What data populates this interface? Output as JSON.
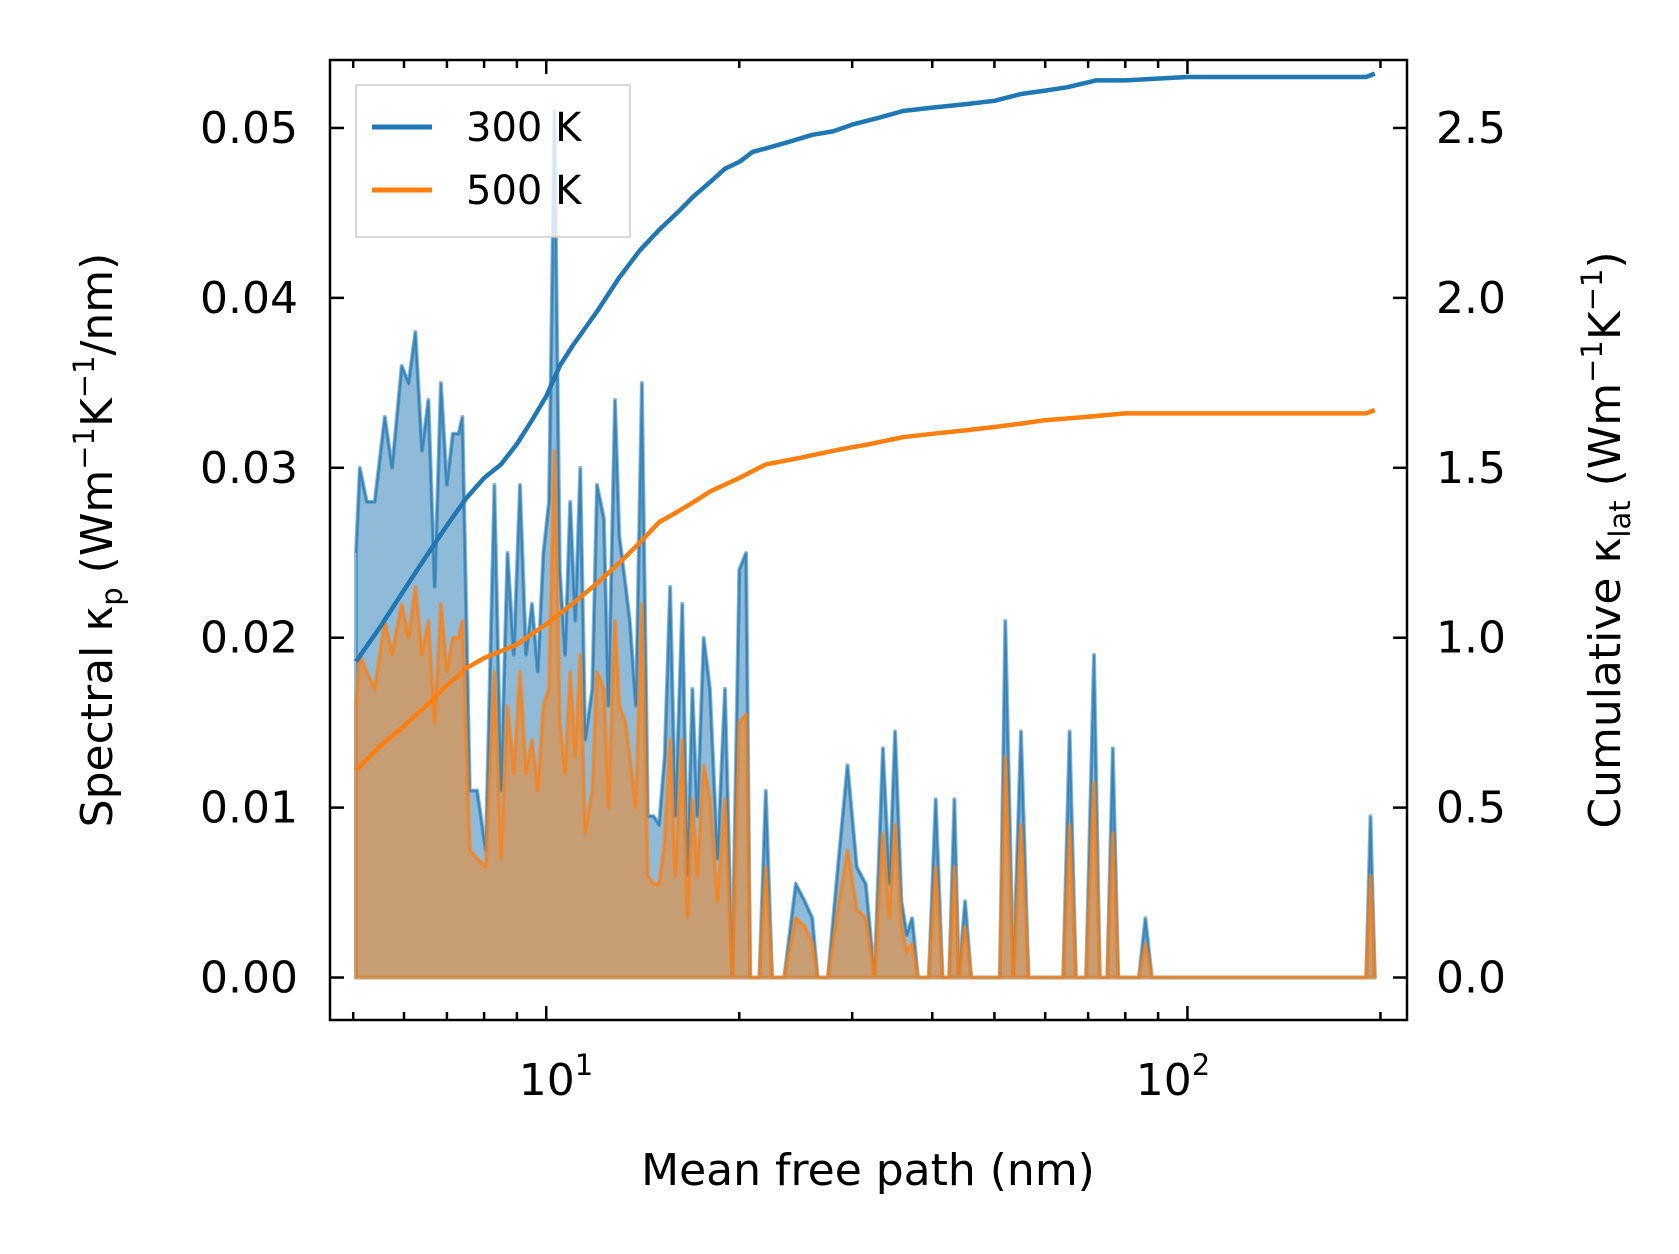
{
  "chart_data": {
    "type": "area",
    "xscale": "log",
    "xlim": [
      4.6,
      220
    ],
    "ylim": [
      -0.0025,
      0.054
    ],
    "y2lim": [
      -0.125,
      2.7
    ],
    "xlabel": "Mean free path (nm)",
    "ylabel": {
      "prefix": "Spectral κ",
      "sub": "p",
      "mid": " (Wm",
      "sup1": "−1",
      "k": "K",
      "sup2": "−1",
      "suffix": "/nm)"
    },
    "y2label": {
      "prefix": "Cumulative κ",
      "sub": "lat",
      "mid": " (Wm",
      "sup1": "−1",
      "k": "K",
      "sup2": "−1",
      "suffix": ")"
    },
    "xticks": [
      {
        "value": 10,
        "base": "10",
        "exp": "1"
      },
      {
        "value": 100,
        "base": "10",
        "exp": "2"
      }
    ],
    "yticks": [
      {
        "value": 0.0,
        "label": "0.00"
      },
      {
        "value": 0.01,
        "label": "0.01"
      },
      {
        "value": 0.02,
        "label": "0.02"
      },
      {
        "value": 0.03,
        "label": "0.03"
      },
      {
        "value": 0.04,
        "label": "0.04"
      },
      {
        "value": 0.05,
        "label": "0.05"
      }
    ],
    "y2ticks": [
      {
        "value": 0.0,
        "label": "0.0"
      },
      {
        "value": 0.5,
        "label": "0.5"
      },
      {
        "value": 1.0,
        "label": "1.0"
      },
      {
        "value": 1.5,
        "label": "1.5"
      },
      {
        "value": 2.0,
        "label": "2.0"
      },
      {
        "value": 2.5,
        "label": "2.5"
      }
    ],
    "legend": {
      "position": "upper-left",
      "entries": [
        "300 K",
        "500 K"
      ]
    },
    "colors": {
      "300 K": "#1f77b4",
      "500 K": "#ff7f0e"
    },
    "spectral": {
      "300 K": [
        [
          5.05,
          0.025
        ],
        [
          5.12,
          0.03
        ],
        [
          5.25,
          0.028
        ],
        [
          5.4,
          0.028
        ],
        [
          5.6,
          0.033
        ],
        [
          5.75,
          0.03
        ],
        [
          5.95,
          0.036
        ],
        [
          6.1,
          0.035
        ],
        [
          6.25,
          0.038
        ],
        [
          6.4,
          0.031
        ],
        [
          6.55,
          0.034
        ],
        [
          6.7,
          0.023
        ],
        [
          6.85,
          0.035
        ],
        [
          7.0,
          0.029
        ],
        [
          7.15,
          0.032
        ],
        [
          7.3,
          0.032
        ],
        [
          7.4,
          0.033
        ],
        [
          7.6,
          0.011
        ],
        [
          7.8,
          0.011
        ],
        [
          8.05,
          0.0075
        ],
        [
          8.3,
          0.029
        ],
        [
          8.5,
          0.011
        ],
        [
          8.7,
          0.025
        ],
        [
          8.9,
          0.019
        ],
        [
          9.1,
          0.029
        ],
        [
          9.3,
          0.019
        ],
        [
          9.5,
          0.022
        ],
        [
          9.7,
          0.018
        ],
        [
          9.9,
          0.025
        ],
        [
          10.1,
          0.028
        ],
        [
          10.3,
          0.051
        ],
        [
          10.5,
          0.024
        ],
        [
          10.7,
          0.019
        ],
        [
          10.9,
          0.028
        ],
        [
          11.1,
          0.021
        ],
        [
          11.3,
          0.03
        ],
        [
          11.5,
          0.014
        ],
        [
          11.8,
          0.017
        ],
        [
          12.0,
          0.029
        ],
        [
          12.3,
          0.027
        ],
        [
          12.5,
          0.016
        ],
        [
          12.8,
          0.034
        ],
        [
          13.0,
          0.026
        ],
        [
          13.3,
          0.023
        ],
        [
          13.5,
          0.021
        ],
        [
          13.8,
          0.016
        ],
        [
          14.1,
          0.035
        ],
        [
          14.4,
          0.0095
        ],
        [
          14.7,
          0.0095
        ],
        [
          15.0,
          0.009
        ],
        [
          15.3,
          0.013
        ],
        [
          15.6,
          0.023
        ],
        [
          15.9,
          0.0095
        ],
        [
          16.3,
          0.022
        ],
        [
          16.6,
          0.006
        ],
        [
          16.9,
          0.017
        ],
        [
          17.2,
          0.0095
        ],
        [
          17.6,
          0.02
        ],
        [
          18.0,
          0.017
        ],
        [
          18.5,
          0.007
        ],
        [
          19.0,
          0.017
        ],
        [
          19.5,
          0.0
        ],
        [
          20.0,
          0.024
        ],
        [
          20.5,
          0.025
        ],
        [
          20.8,
          0.0
        ],
        [
          21.5,
          0.0
        ],
        [
          22.0,
          0.011
        ],
        [
          22.5,
          0.0
        ],
        [
          23.5,
          0.0
        ],
        [
          24.5,
          0.0055
        ],
        [
          25.3,
          0.0045
        ],
        [
          26.0,
          0.0035
        ],
        [
          26.5,
          0.0
        ],
        [
          27.5,
          0.0
        ],
        [
          28.5,
          0.0065
        ],
        [
          29.5,
          0.0125
        ],
        [
          30.5,
          0.0065
        ],
        [
          31.5,
          0.0055
        ],
        [
          32.5,
          0.0
        ],
        [
          33.5,
          0.0135
        ],
        [
          34.3,
          0.0055
        ],
        [
          35.0,
          0.0145
        ],
        [
          35.8,
          0.0045
        ],
        [
          36.5,
          0.0025
        ],
        [
          37.2,
          0.0035
        ],
        [
          38.0,
          0.0
        ],
        [
          38.8,
          0.0
        ],
        [
          39.5,
          0.0
        ],
        [
          40.5,
          0.0105
        ],
        [
          41.5,
          0.0
        ],
        [
          42.5,
          0.0
        ],
        [
          43.3,
          0.0105
        ],
        [
          44.0,
          0.0
        ],
        [
          45.0,
          0.0045
        ],
        [
          46.0,
          0.0
        ],
        [
          48.0,
          0.0
        ],
        [
          49.5,
          0.0
        ],
        [
          51.0,
          0.0
        ],
        [
          52.0,
          0.021
        ],
        [
          53.5,
          0.0
        ],
        [
          55.0,
          0.0145
        ],
        [
          56.5,
          0.0
        ],
        [
          58.0,
          0.0
        ],
        [
          60.0,
          0.0
        ],
        [
          62.0,
          0.0
        ],
        [
          64.0,
          0.0
        ],
        [
          65.5,
          0.0145
        ],
        [
          67.0,
          0.0
        ],
        [
          69.5,
          0.0
        ],
        [
          71.5,
          0.019
        ],
        [
          73.0,
          0.0
        ],
        [
          75.0,
          0.0
        ],
        [
          76.5,
          0.0135
        ],
        [
          78.0,
          0.0
        ],
        [
          80.0,
          0.0
        ],
        [
          84.0,
          0.0
        ],
        [
          86.0,
          0.0035
        ],
        [
          88.0,
          0.0
        ],
        [
          95.0,
          0.0
        ],
        [
          120.0,
          0.0
        ],
        [
          160.0,
          0.0
        ],
        [
          190.0,
          0.0
        ],
        [
          193.0,
          0.0095
        ],
        [
          196.0,
          0.0
        ]
      ],
      "500 K": [
        [
          5.05,
          0.016
        ],
        [
          5.12,
          0.019
        ],
        [
          5.25,
          0.018
        ],
        [
          5.4,
          0.017
        ],
        [
          5.6,
          0.021
        ],
        [
          5.75,
          0.019
        ],
        [
          5.95,
          0.022
        ],
        [
          6.1,
          0.02
        ],
        [
          6.25,
          0.023
        ],
        [
          6.4,
          0.019
        ],
        [
          6.55,
          0.021
        ],
        [
          6.7,
          0.015
        ],
        [
          6.85,
          0.022
        ],
        [
          7.0,
          0.018
        ],
        [
          7.15,
          0.02
        ],
        [
          7.3,
          0.02
        ],
        [
          7.4,
          0.021
        ],
        [
          7.6,
          0.0075
        ],
        [
          7.8,
          0.007
        ],
        [
          8.05,
          0.0065
        ],
        [
          8.3,
          0.018
        ],
        [
          8.5,
          0.007
        ],
        [
          8.7,
          0.016
        ],
        [
          8.9,
          0.012
        ],
        [
          9.1,
          0.018
        ],
        [
          9.3,
          0.012
        ],
        [
          9.5,
          0.014
        ],
        [
          9.7,
          0.011
        ],
        [
          9.9,
          0.016
        ],
        [
          10.1,
          0.017
        ],
        [
          10.3,
          0.031
        ],
        [
          10.5,
          0.015
        ],
        [
          10.7,
          0.012
        ],
        [
          10.9,
          0.018
        ],
        [
          11.1,
          0.013
        ],
        [
          11.3,
          0.019
        ],
        [
          11.5,
          0.0085
        ],
        [
          11.8,
          0.011
        ],
        [
          12.0,
          0.018
        ],
        [
          12.3,
          0.017
        ],
        [
          12.5,
          0.01
        ],
        [
          12.8,
          0.021
        ],
        [
          13.0,
          0.016
        ],
        [
          13.3,
          0.015
        ],
        [
          13.5,
          0.013
        ],
        [
          13.8,
          0.01
        ],
        [
          14.1,
          0.022
        ],
        [
          14.4,
          0.006
        ],
        [
          14.7,
          0.0055
        ],
        [
          15.0,
          0.0055
        ],
        [
          15.3,
          0.008
        ],
        [
          15.6,
          0.014
        ],
        [
          15.9,
          0.006
        ],
        [
          16.3,
          0.014
        ],
        [
          16.6,
          0.0035
        ],
        [
          16.9,
          0.0105
        ],
        [
          17.2,
          0.006
        ],
        [
          17.6,
          0.0125
        ],
        [
          18.0,
          0.0105
        ],
        [
          18.5,
          0.0045
        ],
        [
          19.0,
          0.0105
        ],
        [
          19.5,
          0.0
        ],
        [
          20.0,
          0.015
        ],
        [
          20.5,
          0.0155
        ],
        [
          20.8,
          0.0
        ],
        [
          21.5,
          0.0
        ],
        [
          22.0,
          0.0065
        ],
        [
          22.5,
          0.0
        ],
        [
          23.5,
          0.0
        ],
        [
          24.5,
          0.0035
        ],
        [
          25.3,
          0.003
        ],
        [
          26.0,
          0.002
        ],
        [
          26.5,
          0.0
        ],
        [
          27.5,
          0.0
        ],
        [
          28.5,
          0.004
        ],
        [
          29.5,
          0.0075
        ],
        [
          30.5,
          0.004
        ],
        [
          31.5,
          0.0035
        ],
        [
          32.5,
          0.0
        ],
        [
          33.5,
          0.0085
        ],
        [
          34.3,
          0.0035
        ],
        [
          35.0,
          0.009
        ],
        [
          35.8,
          0.003
        ],
        [
          36.5,
          0.0015
        ],
        [
          37.2,
          0.002
        ],
        [
          38.0,
          0.0
        ],
        [
          38.8,
          0.0
        ],
        [
          39.5,
          0.0
        ],
        [
          40.5,
          0.0065
        ],
        [
          41.5,
          0.0
        ],
        [
          42.5,
          0.0
        ],
        [
          43.3,
          0.0065
        ],
        [
          44.0,
          0.0
        ],
        [
          45.0,
          0.003
        ],
        [
          46.0,
          0.0
        ],
        [
          48.0,
          0.0
        ],
        [
          49.5,
          0.0
        ],
        [
          51.0,
          0.0
        ],
        [
          52.0,
          0.013
        ],
        [
          53.5,
          0.0
        ],
        [
          55.0,
          0.009
        ],
        [
          56.5,
          0.0
        ],
        [
          58.0,
          0.0
        ],
        [
          60.0,
          0.0
        ],
        [
          62.0,
          0.0
        ],
        [
          64.0,
          0.0
        ],
        [
          65.5,
          0.009
        ],
        [
          67.0,
          0.0
        ],
        [
          69.5,
          0.0
        ],
        [
          71.5,
          0.0115
        ],
        [
          73.0,
          0.0
        ],
        [
          75.0,
          0.0
        ],
        [
          76.5,
          0.0085
        ],
        [
          78.0,
          0.0
        ],
        [
          80.0,
          0.0
        ],
        [
          84.0,
          0.0
        ],
        [
          86.0,
          0.002
        ],
        [
          88.0,
          0.0
        ],
        [
          95.0,
          0.0
        ],
        [
          120.0,
          0.0
        ],
        [
          160.0,
          0.0
        ],
        [
          190.0,
          0.0
        ],
        [
          193.0,
          0.006
        ],
        [
          196.0,
          0.0
        ]
      ]
    },
    "cumulative": {
      "300 K": [
        [
          5.05,
          0.93
        ],
        [
          5.5,
          1.03
        ],
        [
          6.0,
          1.14
        ],
        [
          6.5,
          1.24
        ],
        [
          7.0,
          1.33
        ],
        [
          7.5,
          1.41
        ],
        [
          8.0,
          1.47
        ],
        [
          8.5,
          1.51
        ],
        [
          9.0,
          1.57
        ],
        [
          9.5,
          1.64
        ],
        [
          10.0,
          1.71
        ],
        [
          10.5,
          1.8
        ],
        [
          11.0,
          1.86
        ],
        [
          12.0,
          1.96
        ],
        [
          13.0,
          2.06
        ],
        [
          14.0,
          2.14
        ],
        [
          15.0,
          2.2
        ],
        [
          16.0,
          2.25
        ],
        [
          17.0,
          2.3
        ],
        [
          18.0,
          2.34
        ],
        [
          19.0,
          2.38
        ],
        [
          20.0,
          2.4
        ],
        [
          21.0,
          2.43
        ],
        [
          22.0,
          2.44
        ],
        [
          24.0,
          2.46
        ],
        [
          26.0,
          2.48
        ],
        [
          28.0,
          2.49
        ],
        [
          30.0,
          2.51
        ],
        [
          33.0,
          2.53
        ],
        [
          36.0,
          2.55
        ],
        [
          40.0,
          2.56
        ],
        [
          45.0,
          2.57
        ],
        [
          50.0,
          2.58
        ],
        [
          55.0,
          2.6
        ],
        [
          60.0,
          2.61
        ],
        [
          65.0,
          2.62
        ],
        [
          72.0,
          2.64
        ],
        [
          80.0,
          2.64
        ],
        [
          100.0,
          2.65
        ],
        [
          150.0,
          2.65
        ],
        [
          190.0,
          2.65
        ],
        [
          196.0,
          2.66
        ]
      ],
      "500 K": [
        [
          5.05,
          0.61
        ],
        [
          5.5,
          0.68
        ],
        [
          6.0,
          0.74
        ],
        [
          6.5,
          0.8
        ],
        [
          7.0,
          0.86
        ],
        [
          7.5,
          0.91
        ],
        [
          8.0,
          0.94
        ],
        [
          9.0,
          0.98
        ],
        [
          10.0,
          1.04
        ],
        [
          11.0,
          1.1
        ],
        [
          12.0,
          1.16
        ],
        [
          13.0,
          1.22
        ],
        [
          14.0,
          1.28
        ],
        [
          15.0,
          1.34
        ],
        [
          16.0,
          1.37
        ],
        [
          17.0,
          1.4
        ],
        [
          18.0,
          1.43
        ],
        [
          20.0,
          1.47
        ],
        [
          22.0,
          1.51
        ],
        [
          25.0,
          1.53
        ],
        [
          28.0,
          1.55
        ],
        [
          32.0,
          1.57
        ],
        [
          36.0,
          1.59
        ],
        [
          40.0,
          1.6
        ],
        [
          45.0,
          1.61
        ],
        [
          50.0,
          1.62
        ],
        [
          55.0,
          1.63
        ],
        [
          60.0,
          1.64
        ],
        [
          70.0,
          1.65
        ],
        [
          80.0,
          1.66
        ],
        [
          100.0,
          1.66
        ],
        [
          150.0,
          1.66
        ],
        [
          190.0,
          1.66
        ],
        [
          196.0,
          1.67
        ]
      ]
    }
  }
}
